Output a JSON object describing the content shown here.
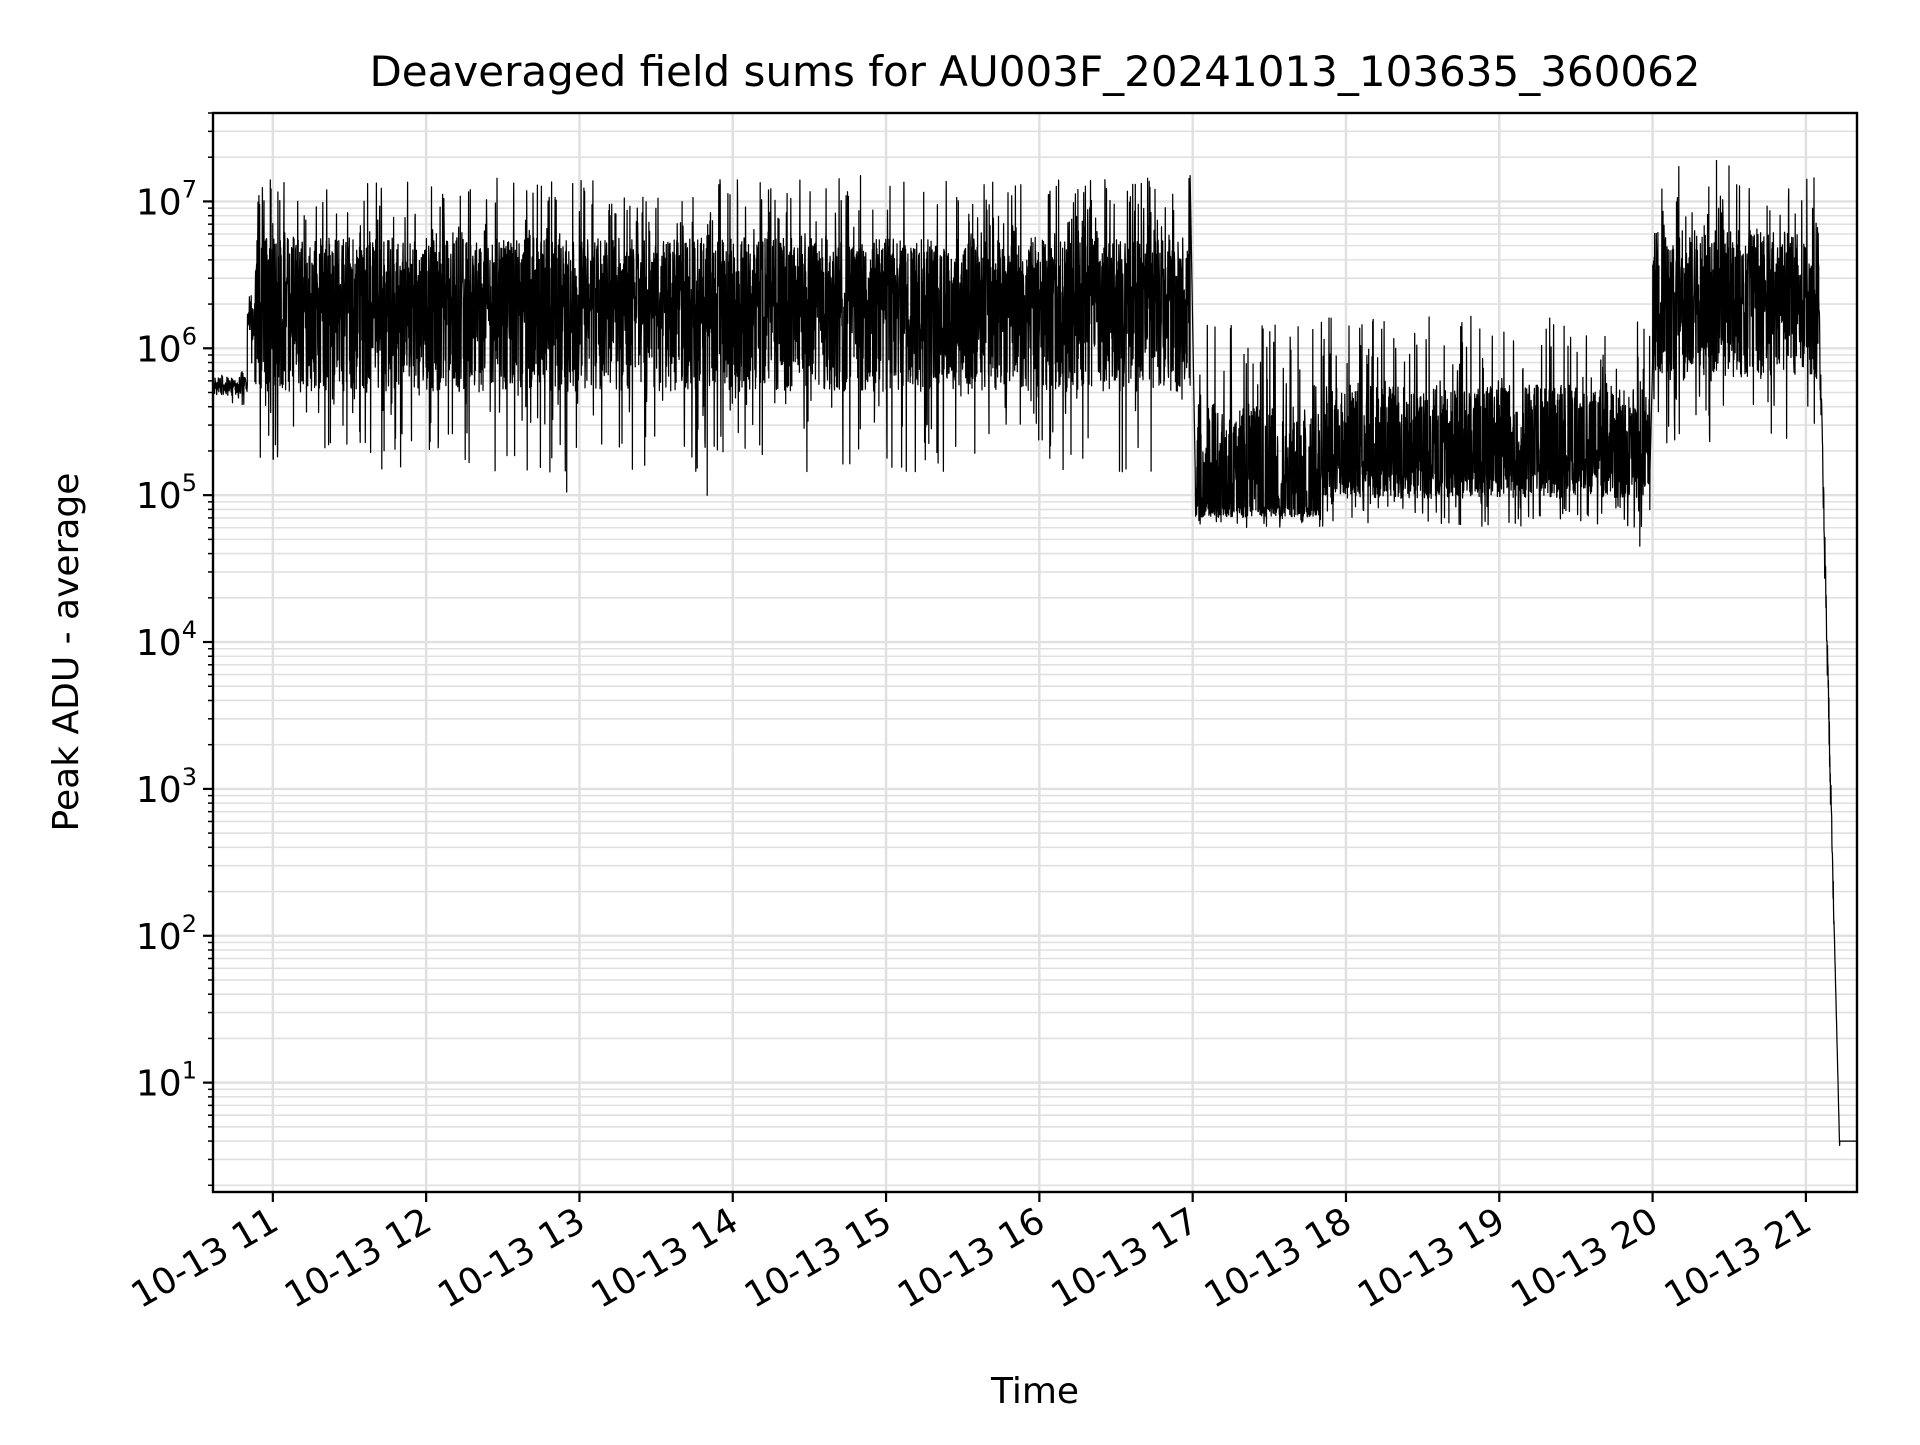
{
  "chart_data": {
    "type": "line",
    "title": "Deaveraged field sums for AU003F_20241013_103635_360062",
    "xlabel": "Time",
    "ylabel": "Peak ADU - average",
    "xscale": "time",
    "yscale": "log",
    "grid": "on (major and minor)",
    "line_color": "#000000",
    "xlim": [
      "2024-10-13 10:36:35",
      "2024-10-13 21:20:00"
    ],
    "ylim": [
      1.8,
      40000000
    ],
    "x_ticks": [
      {
        "label": "10-13 11",
        "value": "2024-10-13 11:00"
      },
      {
        "label": "10-13 12",
        "value": "2024-10-13 12:00"
      },
      {
        "label": "10-13 13",
        "value": "2024-10-13 13:00"
      },
      {
        "label": "10-13 14",
        "value": "2024-10-13 14:00"
      },
      {
        "label": "10-13 15",
        "value": "2024-10-13 15:00"
      },
      {
        "label": "10-13 16",
        "value": "2024-10-13 16:00"
      },
      {
        "label": "10-13 17",
        "value": "2024-10-13 17:00"
      },
      {
        "label": "10-13 18",
        "value": "2024-10-13 18:00"
      },
      {
        "label": "10-13 19",
        "value": "2024-10-13 19:00"
      },
      {
        "label": "10-13 20",
        "value": "2024-10-13 20:00"
      },
      {
        "label": "10-13 21",
        "value": "2024-10-13 21:00"
      }
    ],
    "y_ticks": [
      {
        "base": "10",
        "exp": "1",
        "value": 10
      },
      {
        "base": "10",
        "exp": "2",
        "value": 100
      },
      {
        "base": "10",
        "exp": "3",
        "value": 1000
      },
      {
        "base": "10",
        "exp": "4",
        "value": 10000
      },
      {
        "base": "10",
        "exp": "5",
        "value": 100000
      },
      {
        "base": "10",
        "exp": "6",
        "value": 1000000
      },
      {
        "base": "10",
        "exp": "7",
        "value": 10000000
      }
    ],
    "series": [
      {
        "segments": [
          {
            "start": "2024-10-13 10:36:35",
            "end": "2024-10-13 10:50",
            "median": 550000,
            "spread_low": 0.75,
            "spread_high": 1.3
          },
          {
            "start": "2024-10-13 10:50",
            "end": "2024-10-13 10:53",
            "median": 1500000,
            "spread_low": 0.5,
            "spread_high": 1.8
          },
          {
            "start": "2024-10-13 10:53",
            "end": "2024-10-13 16:59",
            "median": 1800000,
            "spread_low": 0.08,
            "spread_high": 8
          },
          {
            "start": "2024-10-13 17:01",
            "end": "2024-10-13 17:50",
            "median": 85000,
            "spread_low": 0.7,
            "spread_high": 18
          },
          {
            "start": "2024-10-13 17:50",
            "end": "2024-10-13 19:59",
            "median": 150000,
            "spread_low": 0.4,
            "spread_high": 11
          },
          {
            "start": "2024-10-13 20:00",
            "end": "2024-10-13 21:05",
            "median": 1800000,
            "spread_low": 0.12,
            "spread_high": 10
          },
          {
            "start": "2024-10-13 21:05",
            "end": "2024-10-13 21:20",
            "median": 4,
            "spread_low": 1,
            "spread_high": 1
          }
        ],
        "peaks": [
          {
            "x": "2024-10-13 10:59",
            "y": 14000000
          },
          {
            "x": "2024-10-13 14:50",
            "y": 15000000
          },
          {
            "x": "2024-10-13 16:59",
            "y": 15000000
          },
          {
            "x": "2024-10-13 20:25",
            "y": 19000000
          }
        ],
        "troughs": [
          {
            "x": "2024-10-13 12:55",
            "y": 105000
          },
          {
            "x": "2024-10-13 13:50",
            "y": 100000
          },
          {
            "x": "2024-10-13 19:55",
            "y": 45000
          },
          {
            "x": "2024-10-13 21:18",
            "y": 4
          }
        ]
      }
    ]
  }
}
